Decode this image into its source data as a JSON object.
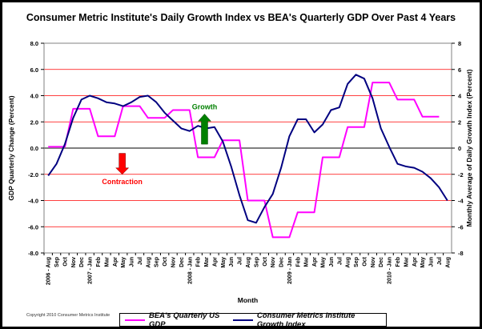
{
  "chart_data": {
    "type": "line",
    "title": "Consumer Metric Institute's Daily Growth Index vs BEA's Quarterly GDP Over Past 4 Years",
    "xlabel": "Month",
    "ylabel_left": "GDP Quarterly Change (Percent)",
    "ylabel_right": "Monthly Average of Daily Growth Index (Percent)",
    "ylim_left": [
      -8,
      8
    ],
    "ylim_right": [
      -8,
      8
    ],
    "yticks_left": [
      "-8.0",
      "-6.0",
      "-4.0",
      "-2.0",
      "0.0",
      "2.0",
      "4.0",
      "6.0",
      "8.0"
    ],
    "yticks_right": [
      "-8",
      "-6",
      "-4",
      "-2",
      "0",
      "2",
      "4",
      "6",
      "8"
    ],
    "categories": [
      "2006 - Aug",
      "Sep",
      "Oct",
      "Nov",
      "Dec",
      "2007 - Jan",
      "Feb",
      "Mar",
      "Apr",
      "May",
      "Jun",
      "Jul",
      "Aug",
      "Sep",
      "Oct",
      "Nov",
      "Dec",
      "2008 - Jan",
      "Feb",
      "Mar",
      "Apr",
      "May",
      "Jun",
      "Jul",
      "Aug",
      "Sep",
      "Oct",
      "Nov",
      "Dec",
      "2009 - Jan",
      "Feb",
      "Mar",
      "Apr",
      "May",
      "Jun",
      "Jul",
      "Aug",
      "Sep",
      "Oct",
      "Nov",
      "Dec",
      "2010 - Jan",
      "Feb",
      "Mar",
      "Apr",
      "May",
      "Jun",
      "Jul",
      "Aug"
    ],
    "grid": true,
    "series": [
      {
        "name": "BEA's Quarterly US GDP",
        "color": "#ff00ff",
        "axis": "left",
        "values": [
          0.1,
          0.1,
          0.1,
          3.0,
          3.0,
          3.0,
          0.9,
          0.9,
          0.9,
          3.2,
          3.2,
          3.2,
          2.3,
          2.3,
          2.3,
          2.9,
          2.9,
          2.9,
          -0.7,
          -0.7,
          -0.7,
          0.6,
          0.6,
          0.6,
          -4.0,
          -4.0,
          -4.0,
          -6.8,
          -6.8,
          -6.8,
          -4.9,
          -4.9,
          -4.9,
          -0.7,
          -0.7,
          -0.7,
          1.6,
          1.6,
          1.6,
          5.0,
          5.0,
          5.0,
          3.7,
          3.7,
          3.7,
          2.4,
          2.4,
          2.4,
          null
        ]
      },
      {
        "name": "Consumer Metrics Institute Growth Index",
        "color": "#000080",
        "axis": "right",
        "values": [
          -2.1,
          -1.2,
          0.3,
          2.3,
          3.7,
          4.0,
          3.8,
          3.5,
          3.4,
          3.2,
          3.5,
          3.9,
          4.0,
          3.5,
          2.7,
          2.1,
          1.5,
          1.3,
          1.7,
          1.5,
          1.6,
          0.5,
          -1.4,
          -3.6,
          -5.5,
          -5.7,
          -4.5,
          -3.5,
          -1.5,
          0.9,
          2.2,
          2.2,
          1.2,
          1.8,
          2.9,
          3.1,
          4.9,
          5.6,
          5.3,
          3.8,
          1.5,
          0.1,
          -1.2,
          -1.4,
          -1.5,
          -1.8,
          -2.3,
          -3.0,
          -4.0
        ]
      }
    ],
    "annotations": [
      {
        "text": "Growth",
        "color": "#008000"
      },
      {
        "text": "Contraction",
        "color": "#ff0000"
      }
    ]
  },
  "copyright": "Copyright 2010 Consumer Metrics Institute"
}
